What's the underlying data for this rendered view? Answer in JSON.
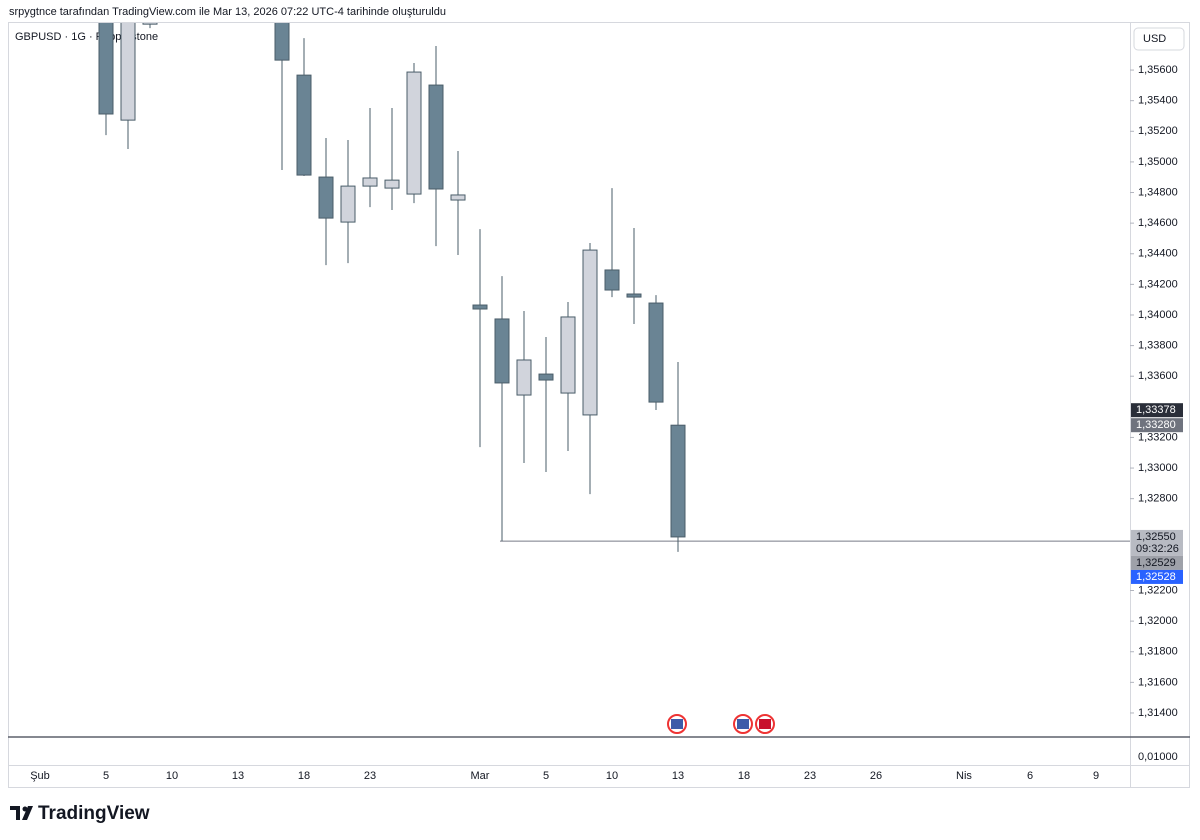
{
  "header": {
    "text": "srpygtnce tarafından TradingView.com ile Mar 13, 2026 07:22 UTC-4 tarihinde oluşturuldu"
  },
  "chart_data": {
    "type": "candlestick",
    "title": "GBPUSD · 1G · Pepperstone",
    "currency": "USD",
    "categories": [
      "Şub",
      null,
      null,
      "5",
      null,
      null,
      "10",
      null,
      null,
      "13",
      null,
      null,
      "18",
      null,
      null,
      "23",
      null,
      null,
      null,
      null,
      "Mar",
      null,
      null,
      "5",
      null,
      null,
      "10",
      null,
      null,
      "13",
      null,
      null,
      "18",
      null,
      null,
      "23",
      null,
      null,
      "26",
      null,
      null,
      null,
      "Nis",
      null,
      null,
      "6",
      null,
      null,
      "9"
    ],
    "open": [
      null,
      null,
      null,
      1.35927,
      1.35273,
      1.359,
      null,
      null,
      null,
      null,
      null,
      1.3593,
      1.35567,
      1.34901,
      1.34607,
      1.34842,
      1.34829,
      1.3479,
      1.35502,
      1.34751,
      1.34065,
      1.33974,
      1.33477,
      1.33614,
      1.3349,
      1.33347,
      1.34294,
      1.34137,
      1.34078,
      1.3328,
      null,
      null,
      null,
      null,
      null,
      null,
      null,
      null,
      null,
      null,
      null,
      null,
      null,
      null,
      null,
      null,
      null,
      null,
      null
    ],
    "high": [
      null,
      null,
      null,
      1.35927,
      1.3606,
      1.3597,
      null,
      null,
      null,
      null,
      null,
      1.36,
      1.35809,
      1.35156,
      1.35143,
      1.35352,
      1.35352,
      1.35646,
      1.35757,
      1.35071,
      1.34561,
      1.34254,
      1.34026,
      1.33856,
      1.34085,
      1.3447,
      1.34829,
      1.34568,
      1.3413,
      1.33693,
      null,
      null,
      null,
      null,
      null,
      null,
      null,
      null,
      null,
      null,
      null,
      null,
      null,
      null,
      null,
      null,
      null,
      null,
      null
    ],
    "low": [
      null,
      null,
      null,
      1.35175,
      1.35084,
      1.35874,
      null,
      null,
      null,
      null,
      null,
      1.34947,
      1.34908,
      1.34326,
      1.34339,
      1.34705,
      1.34686,
      1.34731,
      1.3445,
      1.34392,
      1.33137,
      1.32523,
      1.33033,
      1.32974,
      1.33111,
      1.3283,
      1.34117,
      1.33941,
      1.33379,
      1.32452,
      null,
      null,
      null,
      null,
      null,
      null,
      null,
      null,
      null,
      null,
      null,
      null,
      null,
      null,
      null,
      null,
      null,
      null,
      null
    ],
    "close": [
      null,
      null,
      null,
      1.35313,
      1.36,
      1.3594,
      null,
      null,
      null,
      null,
      null,
      1.35665,
      1.34914,
      1.34633,
      1.34842,
      1.34895,
      1.34881,
      1.35587,
      1.34823,
      1.34784,
      1.34039,
      1.33556,
      1.33706,
      1.33575,
      1.33987,
      1.34424,
      1.34163,
      1.34117,
      1.33431,
      1.3255,
      null,
      null,
      null,
      null,
      null,
      null,
      null,
      null,
      null,
      null,
      null,
      null,
      null,
      null,
      null,
      null,
      null,
      null,
      null
    ],
    "up_color": "#d1d4dc",
    "down_color": "#6a8494",
    "border_color": "#4a5d69",
    "ylim": [
      1.31243,
      1.35914
    ],
    "yticks": [
      {
        "value": 1.356,
        "label": "1,35600"
      },
      {
        "value": 1.354,
        "label": "1,35400"
      },
      {
        "value": 1.352,
        "label": "1,35200"
      },
      {
        "value": 1.35,
        "label": "1,35000"
      },
      {
        "value": 1.348,
        "label": "1,34800"
      },
      {
        "value": 1.346,
        "label": "1,34600"
      },
      {
        "value": 1.344,
        "label": "1,34400"
      },
      {
        "value": 1.342,
        "label": "1,34200"
      },
      {
        "value": 1.34,
        "label": "1,34000"
      },
      {
        "value": 1.338,
        "label": "1,33800"
      },
      {
        "value": 1.336,
        "label": "1,33600"
      },
      {
        "value": 1.332,
        "label": "1,33200"
      },
      {
        "value": 1.33,
        "label": "1,33000"
      },
      {
        "value": 1.328,
        "label": "1,32800"
      },
      {
        "value": 1.322,
        "label": "1,32200"
      },
      {
        "value": 1.32,
        "label": "1,32000"
      },
      {
        "value": 1.318,
        "label": "1,31800"
      },
      {
        "value": 1.316,
        "label": "1,31600"
      },
      {
        "value": 1.314,
        "label": "1,31400"
      }
    ],
    "horizontal_line": {
      "value": 1.32523,
      "color": "#787b86"
    },
    "price_labels": [
      {
        "value": 1.33378,
        "label": "1,33378",
        "color": "#2a2e39",
        "text_color": "#ffffff"
      },
      {
        "value": 1.3328,
        "label": "1,33280",
        "color": "#6f737e",
        "text_color": "#ffffff"
      },
      {
        "value": 1.3255,
        "label": "1,32550",
        "sublabel": "09:32:26",
        "color": "#b8bbc3",
        "text_color": "#131722"
      },
      {
        "value": 1.32529,
        "label": "1,32529",
        "color": "#9ea1a9",
        "text_color": "#131722"
      },
      {
        "value": 1.32528,
        "label": "1,32528",
        "color": "#2962ff",
        "text_color": "#ffffff"
      }
    ],
    "volume_pane": {
      "tick": {
        "value": 0.01,
        "label": "0,01000"
      }
    }
  },
  "footer": {
    "logo": "TradingView"
  }
}
